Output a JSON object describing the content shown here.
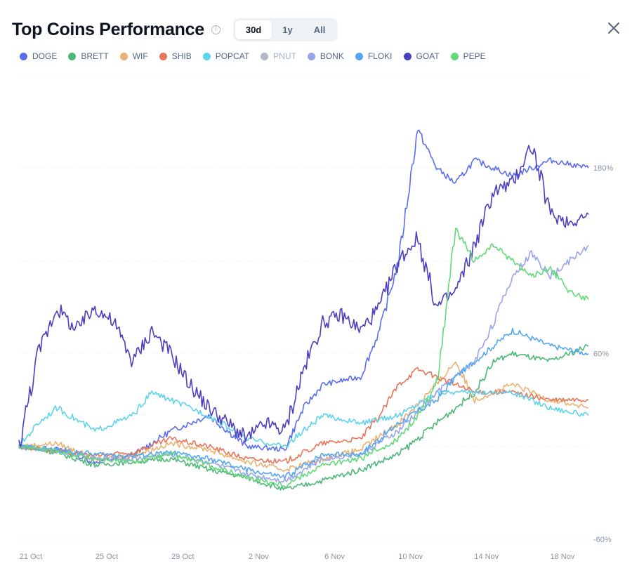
{
  "header": {
    "title": "Top Coins Performance",
    "info_icon": "info-circle-icon",
    "tabs": [
      {
        "label": "30d",
        "active": true
      },
      {
        "label": "1y",
        "active": false
      },
      {
        "label": "All",
        "active": false
      }
    ],
    "close_icon": "close-icon"
  },
  "legend": [
    {
      "name": "DOGE",
      "color": "#5b6cf0",
      "enabled": true
    },
    {
      "name": "BRETT",
      "color": "#4cb877",
      "enabled": true
    },
    {
      "name": "WIF",
      "color": "#e9b272",
      "enabled": true
    },
    {
      "name": "SHIB",
      "color": "#e8765a",
      "enabled": true
    },
    {
      "name": "POPCAT",
      "color": "#5ed3ec",
      "enabled": true
    },
    {
      "name": "PNUT",
      "color": "#b5b9c6",
      "enabled": false
    },
    {
      "name": "BONK",
      "color": "#9aa4ec",
      "enabled": true
    },
    {
      "name": "FLOKI",
      "color": "#55a6f0",
      "enabled": true
    },
    {
      "name": "GOAT",
      "color": "#4b3fbf",
      "enabled": true
    },
    {
      "name": "PEPE",
      "color": "#62d97a",
      "enabled": true
    }
  ],
  "chart_data": {
    "type": "line",
    "x_type": "date",
    "x_range": [
      "2024-10-21",
      "2024-11-20"
    ],
    "x_ticks": [
      "21 Oct",
      "25 Oct",
      "29 Oct",
      "2 Nov",
      "6 Nov",
      "10 Nov",
      "14 Nov",
      "18 Nov"
    ],
    "y_unit": "%",
    "y_ticks": [
      "180%",
      "60%",
      "-60%"
    ],
    "ylim": [
      -60,
      240
    ],
    "grid": true,
    "legend_position": "top",
    "series": [
      {
        "name": "DOGE",
        "color": "#5b6cf0",
        "x": [
          "2024-10-21",
          "2024-10-23",
          "2024-10-25",
          "2024-10-27",
          "2024-10-29",
          "2024-10-31",
          "2024-11-02",
          "2024-11-04",
          "2024-11-05",
          "2024-11-06",
          "2024-11-08",
          "2024-11-09",
          "2024-11-10",
          "2024-11-11",
          "2024-11-12",
          "2024-11-13",
          "2024-11-14",
          "2024-11-16",
          "2024-11-18",
          "2024-11-20"
        ],
        "y": [
          0,
          -2,
          -10,
          -6,
          10,
          20,
          0,
          -2,
          25,
          40,
          45,
          75,
          120,
          205,
          180,
          170,
          185,
          175,
          185,
          180
        ]
      },
      {
        "name": "BRETT",
        "color": "#4cb877",
        "x": [
          "2024-10-21",
          "2024-10-23",
          "2024-10-25",
          "2024-10-27",
          "2024-10-29",
          "2024-10-31",
          "2024-11-02",
          "2024-11-04",
          "2024-11-06",
          "2024-11-08",
          "2024-11-10",
          "2024-11-12",
          "2024-11-14",
          "2024-11-15",
          "2024-11-16",
          "2024-11-18",
          "2024-11-20"
        ],
        "y": [
          0,
          -4,
          -12,
          -10,
          -8,
          -15,
          -20,
          -28,
          -22,
          -15,
          -5,
          15,
          35,
          55,
          60,
          55,
          65
        ]
      },
      {
        "name": "WIF",
        "color": "#e9b272",
        "x": [
          "2024-10-21",
          "2024-10-23",
          "2024-10-25",
          "2024-10-27",
          "2024-10-29",
          "2024-10-31",
          "2024-11-02",
          "2024-11-04",
          "2024-11-06",
          "2024-11-08",
          "2024-11-10",
          "2024-11-12",
          "2024-11-13",
          "2024-11-14",
          "2024-11-16",
          "2024-11-18",
          "2024-11-20"
        ],
        "y": [
          0,
          2,
          -8,
          -6,
          2,
          -2,
          -10,
          -15,
          -8,
          -2,
          15,
          40,
          55,
          30,
          40,
          30,
          25
        ]
      },
      {
        "name": "SHIB",
        "color": "#e8765a",
        "x": [
          "2024-10-21",
          "2024-10-23",
          "2024-10-25",
          "2024-10-27",
          "2024-10-29",
          "2024-10-31",
          "2024-11-02",
          "2024-11-04",
          "2024-11-06",
          "2024-11-08",
          "2024-11-09",
          "2024-11-10",
          "2024-11-11",
          "2024-11-12",
          "2024-11-14",
          "2024-11-16",
          "2024-11-18",
          "2024-11-20"
        ],
        "y": [
          0,
          -3,
          -6,
          -4,
          5,
          0,
          -8,
          -10,
          2,
          5,
          20,
          40,
          50,
          45,
          35,
          35,
          30,
          30
        ]
      },
      {
        "name": "POPCAT",
        "color": "#5ed3ec",
        "x": [
          "2024-10-21",
          "2024-10-22",
          "2024-10-23",
          "2024-10-25",
          "2024-10-27",
          "2024-10-28",
          "2024-10-29",
          "2024-10-31",
          "2024-11-02",
          "2024-11-04",
          "2024-11-06",
          "2024-11-08",
          "2024-11-10",
          "2024-11-12",
          "2024-11-14",
          "2024-11-16",
          "2024-11-18",
          "2024-11-20"
        ],
        "y": [
          0,
          15,
          25,
          10,
          20,
          35,
          30,
          20,
          5,
          0,
          20,
          15,
          20,
          35,
          35,
          35,
          25,
          20
        ]
      },
      {
        "name": "BONK",
        "color": "#9aa4ec",
        "x": [
          "2024-10-21",
          "2024-10-23",
          "2024-10-25",
          "2024-10-27",
          "2024-10-29",
          "2024-10-31",
          "2024-11-02",
          "2024-11-04",
          "2024-11-06",
          "2024-11-08",
          "2024-11-10",
          "2024-11-12",
          "2024-11-13",
          "2024-11-14",
          "2024-11-15",
          "2024-11-16",
          "2024-11-17",
          "2024-11-18",
          "2024-11-20"
        ],
        "y": [
          0,
          -3,
          -8,
          -8,
          -5,
          -10,
          -18,
          -22,
          -8,
          -5,
          10,
          35,
          45,
          55,
          80,
          110,
          125,
          110,
          130
        ]
      },
      {
        "name": "FLOKI",
        "color": "#55a6f0",
        "x": [
          "2024-10-21",
          "2024-10-23",
          "2024-10-25",
          "2024-10-27",
          "2024-10-29",
          "2024-10-31",
          "2024-11-02",
          "2024-11-04",
          "2024-11-06",
          "2024-11-08",
          "2024-11-10",
          "2024-11-12",
          "2024-11-13",
          "2024-11-14",
          "2024-11-15",
          "2024-11-16",
          "2024-11-18",
          "2024-11-20"
        ],
        "y": [
          0,
          -2,
          -5,
          -6,
          -4,
          -8,
          -15,
          -20,
          -5,
          -5,
          15,
          30,
          45,
          55,
          65,
          75,
          65,
          60
        ]
      },
      {
        "name": "GOAT",
        "color": "#4b3fbf",
        "x": [
          "2024-10-21",
          "2024-10-22",
          "2024-10-23",
          "2024-10-24",
          "2024-10-25",
          "2024-10-26",
          "2024-10-27",
          "2024-10-28",
          "2024-10-29",
          "2024-10-30",
          "2024-10-31",
          "2024-11-01",
          "2024-11-02",
          "2024-11-03",
          "2024-11-04",
          "2024-11-05",
          "2024-11-06",
          "2024-11-07",
          "2024-11-08",
          "2024-11-09",
          "2024-11-10",
          "2024-11-11",
          "2024-11-12",
          "2024-11-13",
          "2024-11-14",
          "2024-11-15",
          "2024-11-16",
          "2024-11-17",
          "2024-11-18",
          "2024-11-19",
          "2024-11-20"
        ],
        "y": [
          0,
          60,
          90,
          75,
          90,
          80,
          55,
          75,
          60,
          40,
          25,
          15,
          5,
          15,
          10,
          50,
          80,
          85,
          75,
          90,
          120,
          135,
          90,
          100,
          130,
          165,
          170,
          195,
          150,
          145,
          150
        ]
      },
      {
        "name": "PEPE",
        "color": "#62d97a",
        "x": [
          "2024-10-21",
          "2024-10-23",
          "2024-10-25",
          "2024-10-27",
          "2024-10-29",
          "2024-10-31",
          "2024-11-02",
          "2024-11-04",
          "2024-11-06",
          "2024-11-08",
          "2024-11-10",
          "2024-11-11",
          "2024-11-12",
          "2024-11-13",
          "2024-11-14",
          "2024-11-15",
          "2024-11-16",
          "2024-11-17",
          "2024-11-18",
          "2024-11-19",
          "2024-11-20"
        ],
        "y": [
          0,
          -3,
          -8,
          -10,
          -5,
          -12,
          -20,
          -25,
          -12,
          -8,
          5,
          20,
          40,
          140,
          120,
          130,
          120,
          110,
          115,
          100,
          95
        ]
      }
    ]
  }
}
